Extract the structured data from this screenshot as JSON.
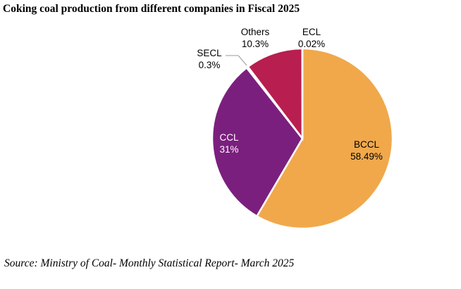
{
  "chart_data": {
    "type": "pie",
    "title": "Coking coal production from different companies in Fiscal 2025",
    "slices": [
      {
        "label": "BCCL",
        "value": 58.49,
        "display": "58.49%",
        "color": "#F0A84B",
        "label_color": "#000000"
      },
      {
        "label": "CCL",
        "value": 31,
        "display": "31%",
        "color": "#7B1F7E",
        "label_color": "#ffffff"
      },
      {
        "label": "SECL",
        "value": 0.3,
        "display": "0.3%",
        "color": "#E9E0EC",
        "label_color": "#000000"
      },
      {
        "label": "Others",
        "value": 10.3,
        "display": "10.3%",
        "color": "#B81E4F",
        "label_color": "#000000"
      },
      {
        "label": "ECL",
        "value": 0.02,
        "display": "0.02%",
        "color": "#F0A84B",
        "label_color": "#000000"
      }
    ],
    "start": "top",
    "direction": "clockwise"
  },
  "source": "Source: Ministry of Coal- Monthly Statistical Report- March 2025"
}
